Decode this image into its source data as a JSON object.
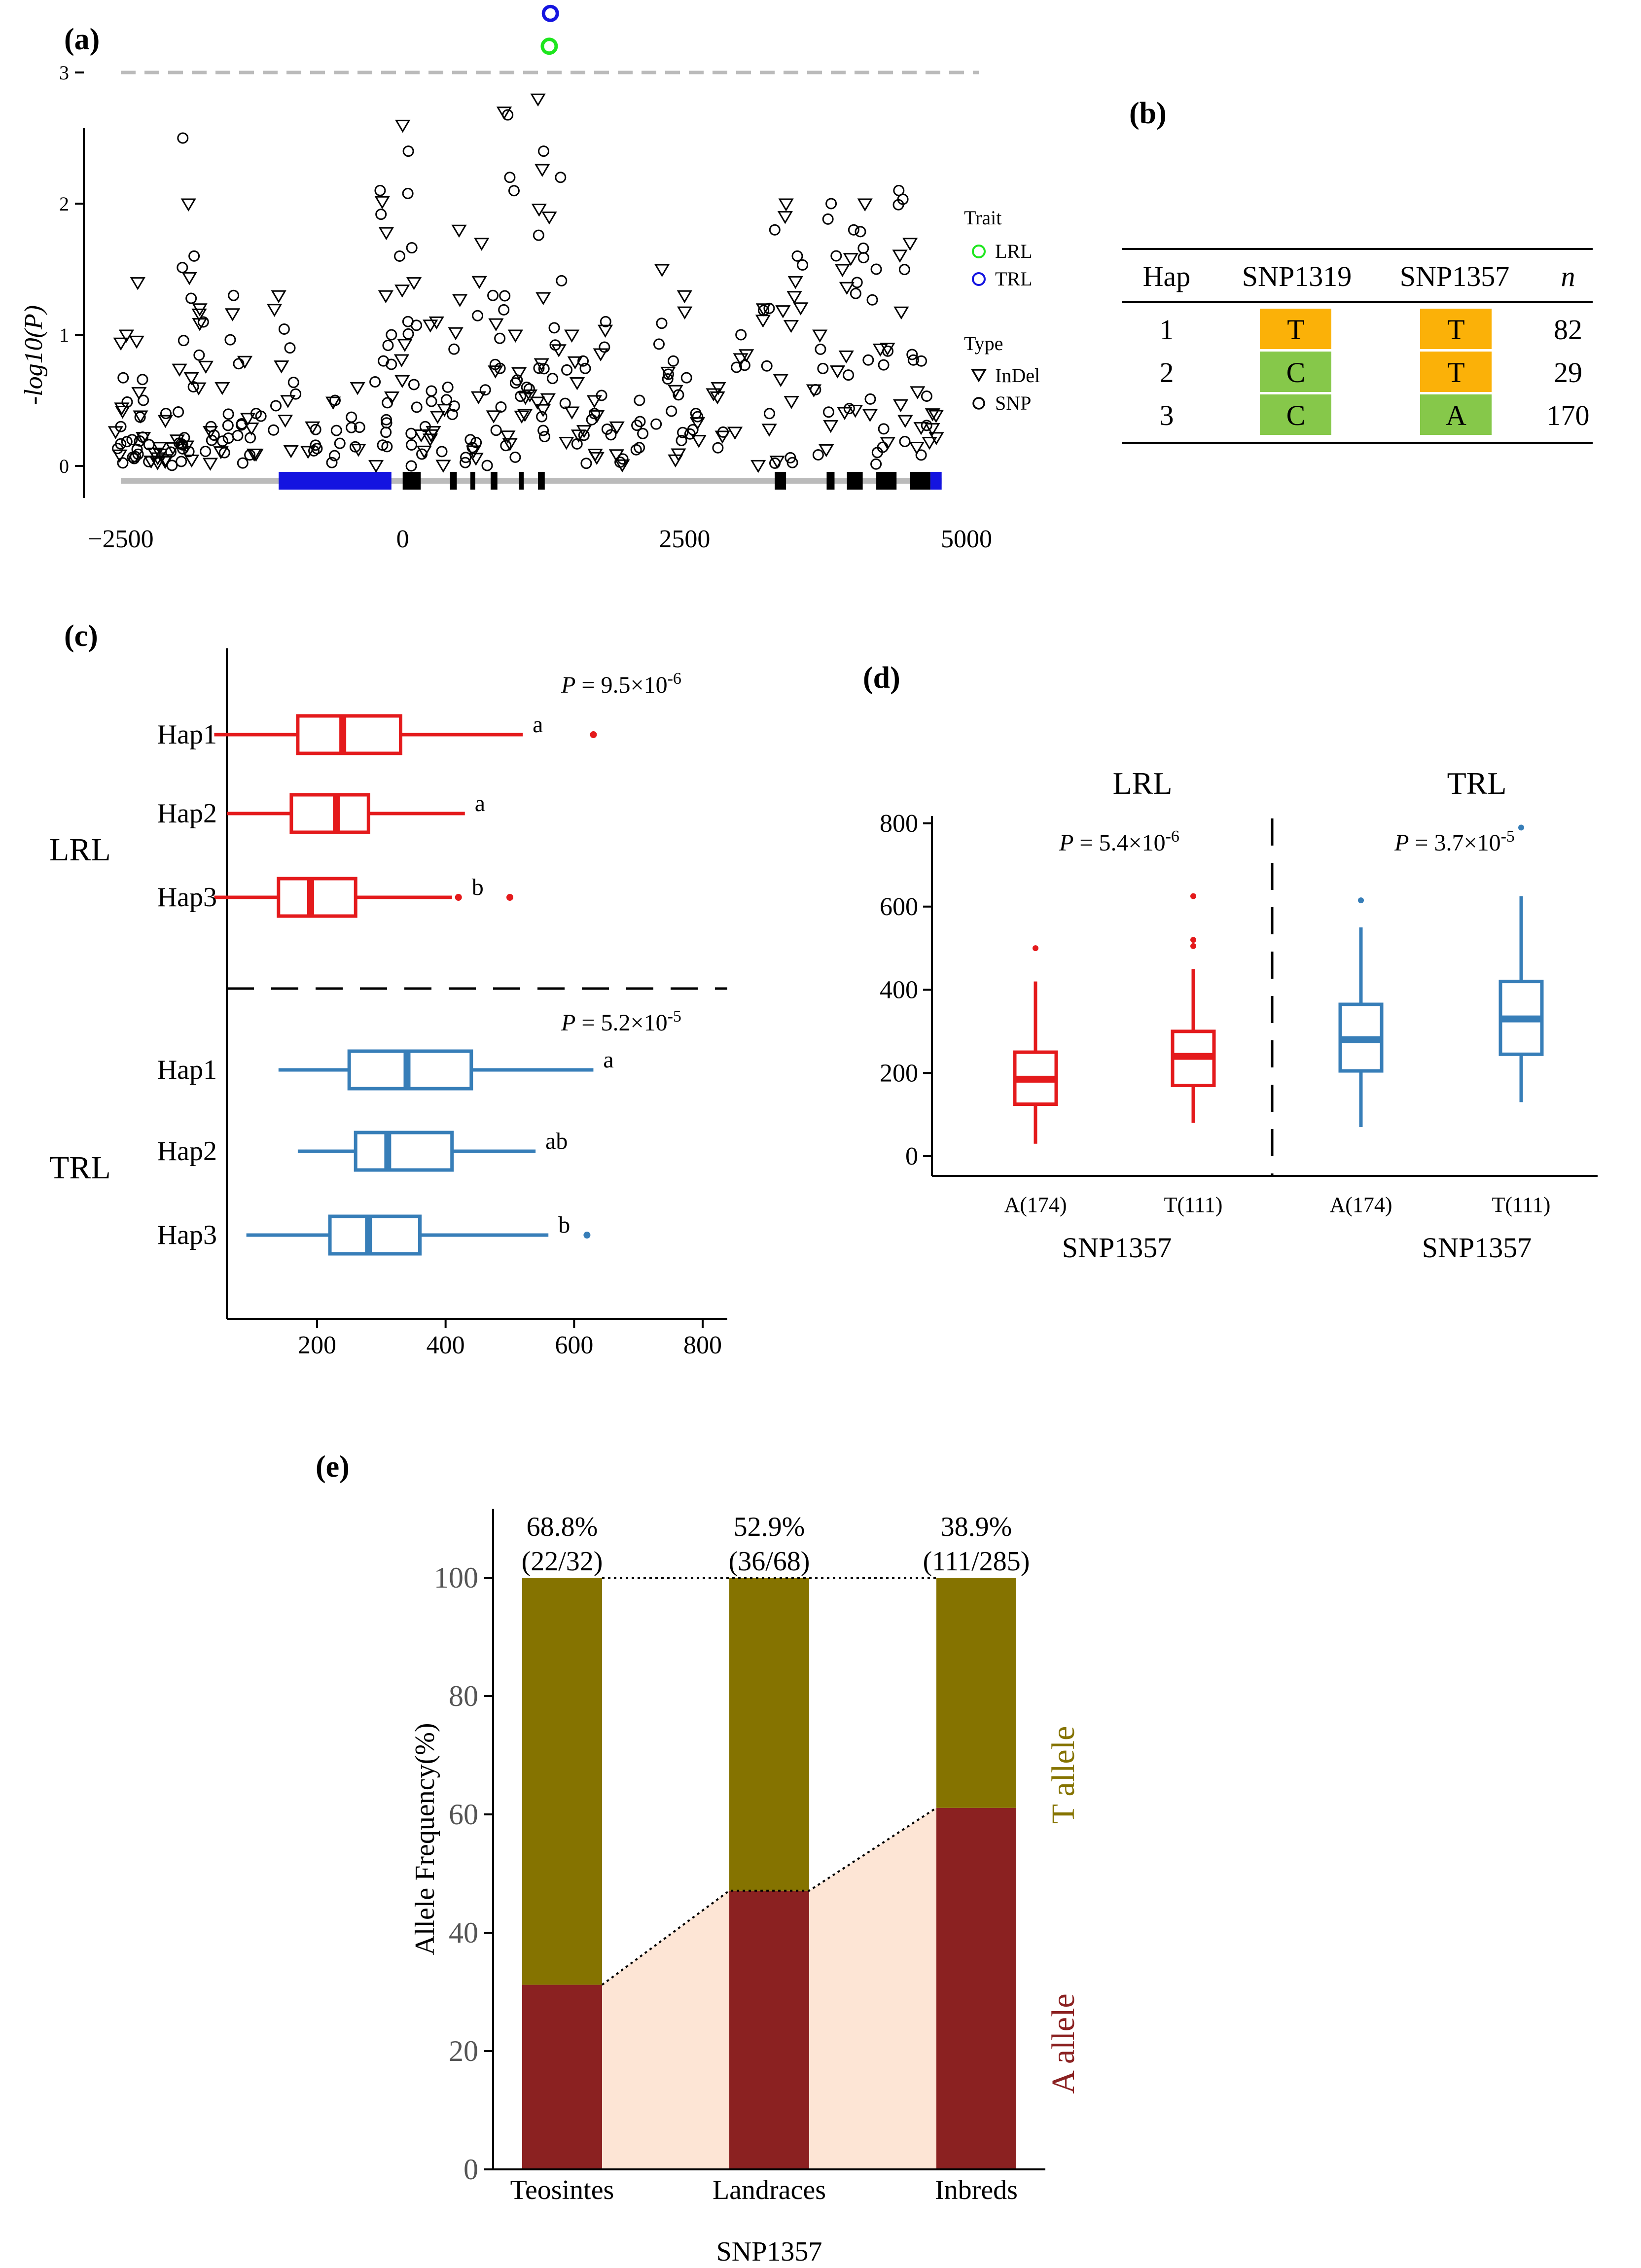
{
  "panel_labels": {
    "a": "(a)",
    "b": "(b)",
    "c": "(c)",
    "d": "(d)",
    "e": "(e)"
  },
  "colors": {
    "lrl": "#1ee61e",
    "trl": "#1414e0",
    "red": "#e41a1c",
    "blue": "#377eb8",
    "t_allele": "#857300",
    "a_allele": "#8b2121",
    "fill_light": "#fde5d5",
    "orange": "#fbb108",
    "green": "#86c84a",
    "gene_blue": "#1414e0"
  },
  "chart_data": [
    {
      "panel": "a",
      "type": "scatter",
      "ylabel": "-log10(P)",
      "xlim": [
        -2700,
        5100
      ],
      "ylim": [
        -0.3,
        4.0
      ],
      "xticks": [
        "-2500",
        "0",
        "2500",
        "5000"
      ],
      "yticks": [
        "0",
        "1",
        "2",
        "3"
      ],
      "threshold": 3,
      "legend_trait_title": "Trait",
      "legend_trait": [
        "LRL",
        "TRL"
      ],
      "legend_type_title": "Type",
      "legend_type": [
        "InDel",
        "SNP"
      ],
      "highlight": [
        {
          "trait": "TRL",
          "x": 1400,
          "y": 3.8
        },
        {
          "trait": "LRL",
          "x": 1400,
          "y": 3.7
        },
        {
          "trait": "TRL",
          "x": 1310,
          "y": 3.45
        },
        {
          "trait": "LRL",
          "x": 1300,
          "y": 3.2
        }
      ],
      "gene_model": {
        "promoter": [
          -1100,
          -100
        ],
        "exons": [
          [
            0,
            160
          ],
          [
            420,
            480
          ],
          [
            600,
            630
          ],
          [
            780,
            840
          ],
          [
            1030,
            1060
          ],
          [
            1200,
            1260
          ],
          [
            3300,
            3400
          ],
          [
            3760,
            3830
          ],
          [
            3940,
            4080
          ],
          [
            4200,
            4380
          ],
          [
            4500,
            4680
          ]
        ],
        "utr3": [
          4680,
          4780
        ]
      },
      "background_points": [
        {
          "x": -2500,
          "y": 0.3
        },
        {
          "x": -2450,
          "y": 1.0
        },
        {
          "x": -2400,
          "y": 0.2
        },
        {
          "x": -2350,
          "y": 1.4
        },
        {
          "x": -2300,
          "y": 0.5
        },
        {
          "x": -2200,
          "y": 0.1
        },
        {
          "x": -2100,
          "y": 0.4
        },
        {
          "x": -2000,
          "y": 0.2
        },
        {
          "x": -1950,
          "y": 2.5
        },
        {
          "x": -1900,
          "y": 2.0
        },
        {
          "x": -1850,
          "y": 1.6
        },
        {
          "x": -1800,
          "y": 1.2
        },
        {
          "x": -1700,
          "y": 0.3
        },
        {
          "x": -1600,
          "y": 0.6
        },
        {
          "x": -1500,
          "y": 1.3
        },
        {
          "x": -1400,
          "y": 0.8
        },
        {
          "x": -1300,
          "y": 0.4
        },
        {
          "x": -1100,
          "y": 1.3
        },
        {
          "x": -1000,
          "y": 0.9
        },
        {
          "x": -800,
          "y": 0.3
        },
        {
          "x": -600,
          "y": 0.5
        },
        {
          "x": -400,
          "y": 0.6
        },
        {
          "x": -200,
          "y": 2.1
        },
        {
          "x": -150,
          "y": 1.3
        },
        {
          "x": -100,
          "y": 1.0
        },
        {
          "x": 0,
          "y": 2.6
        },
        {
          "x": 50,
          "y": 2.4
        },
        {
          "x": 100,
          "y": 1.4
        },
        {
          "x": 200,
          "y": 0.3
        },
        {
          "x": 300,
          "y": 1.1
        },
        {
          "x": 400,
          "y": 0.6
        },
        {
          "x": 500,
          "y": 1.8
        },
        {
          "x": 600,
          "y": 0.2
        },
        {
          "x": 700,
          "y": 1.7
        },
        {
          "x": 800,
          "y": 1.3
        },
        {
          "x": 900,
          "y": 2.7
        },
        {
          "x": 950,
          "y": 2.2
        },
        {
          "x": 1000,
          "y": 1.0
        },
        {
          "x": 1100,
          "y": 0.6
        },
        {
          "x": 1200,
          "y": 2.8
        },
        {
          "x": 1250,
          "y": 2.4
        },
        {
          "x": 1300,
          "y": 1.9
        },
        {
          "x": 1400,
          "y": 2.2
        },
        {
          "x": 1500,
          "y": 1.0
        },
        {
          "x": 1600,
          "y": 0.8
        },
        {
          "x": 1700,
          "y": 0.5
        },
        {
          "x": 1800,
          "y": 1.1
        },
        {
          "x": 1900,
          "y": 0.3
        },
        {
          "x": 2100,
          "y": 0.5
        },
        {
          "x": 2300,
          "y": 1.5
        },
        {
          "x": 2400,
          "y": 0.8
        },
        {
          "x": 2500,
          "y": 1.3
        },
        {
          "x": 2600,
          "y": 0.4
        },
        {
          "x": 2800,
          "y": 0.6
        },
        {
          "x": 3000,
          "y": 1.0
        },
        {
          "x": 3200,
          "y": 1.2
        },
        {
          "x": 3300,
          "y": 1.8
        },
        {
          "x": 3400,
          "y": 2.0
        },
        {
          "x": 3500,
          "y": 1.6
        },
        {
          "x": 3700,
          "y": 1.0
        },
        {
          "x": 3800,
          "y": 2.0
        },
        {
          "x": 3900,
          "y": 1.5
        },
        {
          "x": 4000,
          "y": 1.8
        },
        {
          "x": 4100,
          "y": 2.0
        },
        {
          "x": 4200,
          "y": 1.5
        },
        {
          "x": 4300,
          "y": 0.9
        },
        {
          "x": 4400,
          "y": 2.1
        },
        {
          "x": 4500,
          "y": 1.7
        },
        {
          "x": 4600,
          "y": 0.8
        },
        {
          "x": 4700,
          "y": 0.4
        }
      ]
    },
    {
      "panel": "b",
      "type": "table",
      "columns": [
        "Hap",
        "SNP1319",
        "SNP1357",
        "n"
      ],
      "rows": [
        {
          "hap": "1",
          "snp1319": "T",
          "snp1357": "T",
          "n": "82"
        },
        {
          "hap": "2",
          "snp1319": "C",
          "snp1357": "T",
          "n": "29"
        },
        {
          "hap": "3",
          "snp1319": "C",
          "snp1357": "A",
          "n": "170"
        }
      ]
    },
    {
      "panel": "c",
      "type": "boxplot",
      "xlim": [
        0,
        850
      ],
      "xticks": [
        "200",
        "400",
        "600",
        "800"
      ],
      "groups": [
        {
          "name": "LRL",
          "p_text": "P = 9.5×10-6",
          "boxes": [
            {
              "label": "Hap1",
              "min": 40,
              "q1": 170,
              "median": 240,
              "q3": 330,
              "max": 520,
              "outliers": [
                630
              ],
              "letter": "a"
            },
            {
              "label": "Hap2",
              "min": 60,
              "q1": 160,
              "median": 230,
              "q3": 280,
              "max": 430,
              "outliers": [],
              "letter": "a"
            },
            {
              "label": "Hap3",
              "min": 40,
              "q1": 140,
              "median": 190,
              "q3": 260,
              "max": 410,
              "outliers": [
                420,
                500
              ],
              "letter": "b"
            }
          ]
        },
        {
          "name": "TRL",
          "p_text": "P = 5.2×10-5",
          "boxes": [
            {
              "label": "Hap1",
              "min": 140,
              "q1": 250,
              "median": 340,
              "q3": 440,
              "max": 630,
              "outliers": [],
              "letter": "a"
            },
            {
              "label": "Hap2",
              "min": 170,
              "q1": 260,
              "median": 310,
              "q3": 410,
              "max": 540,
              "outliers": [],
              "letter": "ab"
            },
            {
              "label": "Hap3",
              "min": 90,
              "q1": 220,
              "median": 280,
              "q3": 360,
              "max": 560,
              "outliers": [
                620
              ],
              "letter": "b"
            }
          ]
        }
      ]
    },
    {
      "panel": "d",
      "type": "boxplot",
      "ylim": [
        0,
        820
      ],
      "yticks": [
        "0",
        "200",
        "400",
        "600",
        "800"
      ],
      "groups": [
        {
          "title": "LRL",
          "p_text": "P = 5.4×10-6",
          "xlabel": "SNP1357",
          "boxes": [
            {
              "label": "A(174)",
              "min": 30,
              "q1": 125,
              "median": 185,
              "q3": 250,
              "max": 420,
              "outliers": [
                500
              ]
            },
            {
              "label": "T(111)",
              "min": 80,
              "q1": 170,
              "median": 240,
              "q3": 300,
              "max": 450,
              "outliers": [
                505,
                520,
                625
              ]
            }
          ]
        },
        {
          "title": "TRL",
          "p_text": "P = 3.7×10-5",
          "xlabel": "SNP1357",
          "boxes": [
            {
              "label": "A(174)",
              "min": 70,
              "q1": 205,
              "median": 280,
              "q3": 365,
              "max": 550,
              "outliers": [
                615
              ]
            },
            {
              "label": "T(111)",
              "min": 130,
              "q1": 245,
              "median": 330,
              "q3": 420,
              "max": 625,
              "outliers": [
                790
              ]
            }
          ]
        }
      ]
    },
    {
      "panel": "e",
      "type": "bar",
      "categories": [
        "Teosintes",
        "Landraces",
        "Inbreds"
      ],
      "ylabel": "Allele Frequency(%)",
      "xlabel": "SNP1357",
      "ylim": [
        0,
        100
      ],
      "yticks": [
        "0",
        "20",
        "40",
        "60",
        "80",
        "100"
      ],
      "series": [
        {
          "name": "A allele",
          "values": [
            31.2,
            47.1,
            61.1
          ]
        },
        {
          "name": "T allele",
          "values": [
            68.8,
            52.9,
            38.9
          ]
        }
      ],
      "top_labels": [
        "68.8%",
        "52.9%",
        "38.9%"
      ],
      "top_counts": [
        "(22/32)",
        "(36/68)",
        "(111/285)"
      ]
    }
  ]
}
